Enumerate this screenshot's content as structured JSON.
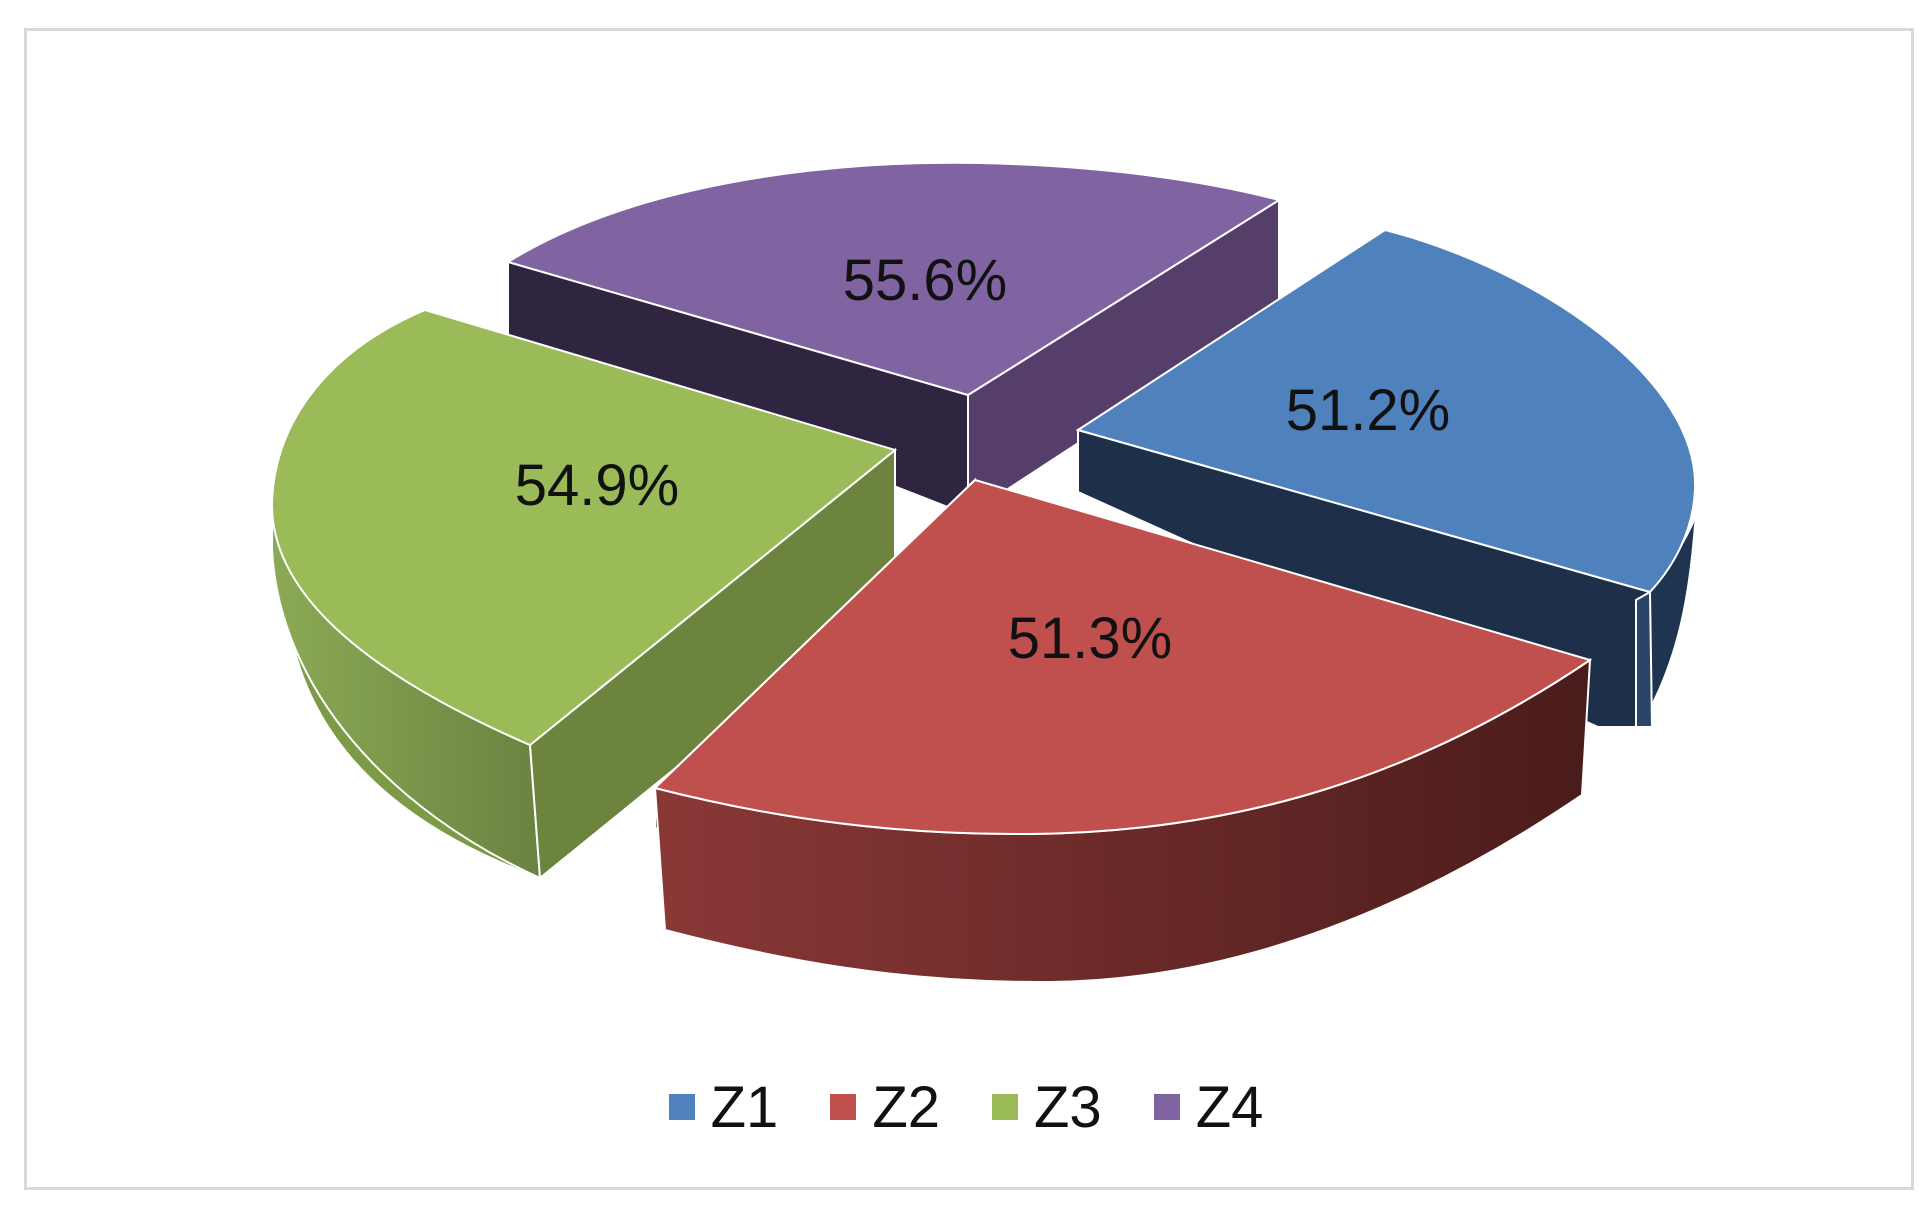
{
  "chart_data": {
    "type": "pie",
    "style": "3d-exploded",
    "categories": [
      "Z1",
      "Z2",
      "Z3",
      "Z4"
    ],
    "values": [
      51.2,
      51.3,
      54.9,
      55.6
    ],
    "data_labels": [
      "51.2%",
      "51.3%",
      "54.9%",
      "55.6%"
    ],
    "colors": [
      "#4f81bd",
      "#c0504d",
      "#9bbb59",
      "#8064a2"
    ],
    "title": "",
    "legend_position": "bottom"
  },
  "legend": {
    "items": [
      {
        "label": "Z1",
        "color": "#4f81bd"
      },
      {
        "label": "Z2",
        "color": "#c0504d"
      },
      {
        "label": "Z3",
        "color": "#9bbb59"
      },
      {
        "label": "Z4",
        "color": "#8064a2"
      }
    ]
  }
}
